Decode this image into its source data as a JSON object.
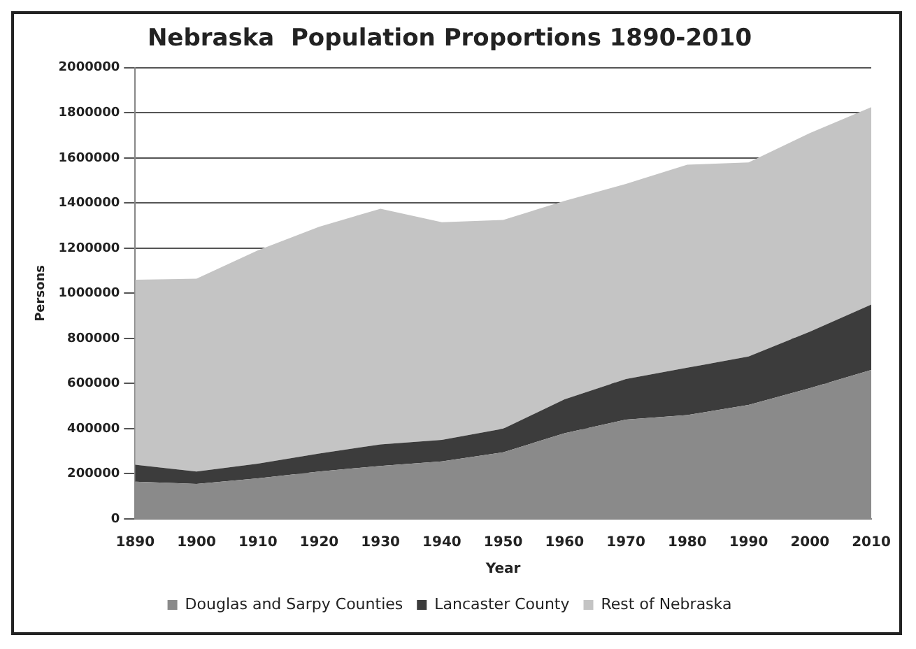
{
  "chart_data": {
    "type": "area",
    "title": "Nebraska  Population Proportions 1890-2010",
    "xlabel": "Year",
    "ylabel": "Persons",
    "categories": [
      "1890",
      "1900",
      "1910",
      "1920",
      "1930",
      "1940",
      "1950",
      "1960",
      "1970",
      "1980",
      "1990",
      "2000",
      "2010"
    ],
    "stacked": true,
    "series": [
      {
        "name": "Douglas and Sarpy Counties",
        "color": "#8a8a8a",
        "values": [
          165000,
          155000,
          180000,
          210000,
          235000,
          255000,
          295000,
          380000,
          440000,
          460000,
          505000,
          580000,
          660000
        ]
      },
      {
        "name": "Lancaster County",
        "color": "#3c3c3c",
        "values": [
          75000,
          55000,
          65000,
          80000,
          95000,
          95000,
          105000,
          150000,
          180000,
          210000,
          215000,
          250000,
          290000
        ]
      },
      {
        "name": "Rest of Nebraska",
        "color": "#c4c4c4",
        "values": [
          820000,
          855000,
          945000,
          1005000,
          1045000,
          965000,
          925000,
          880000,
          865000,
          900000,
          860000,
          880000,
          875000
        ]
      }
    ],
    "ylim": [
      0,
      2000000
    ],
    "yticks": [
      0,
      200000,
      400000,
      600000,
      800000,
      1000000,
      1200000,
      1400000,
      1600000,
      1800000,
      2000000
    ],
    "grid": "y",
    "legend": "bottom"
  }
}
